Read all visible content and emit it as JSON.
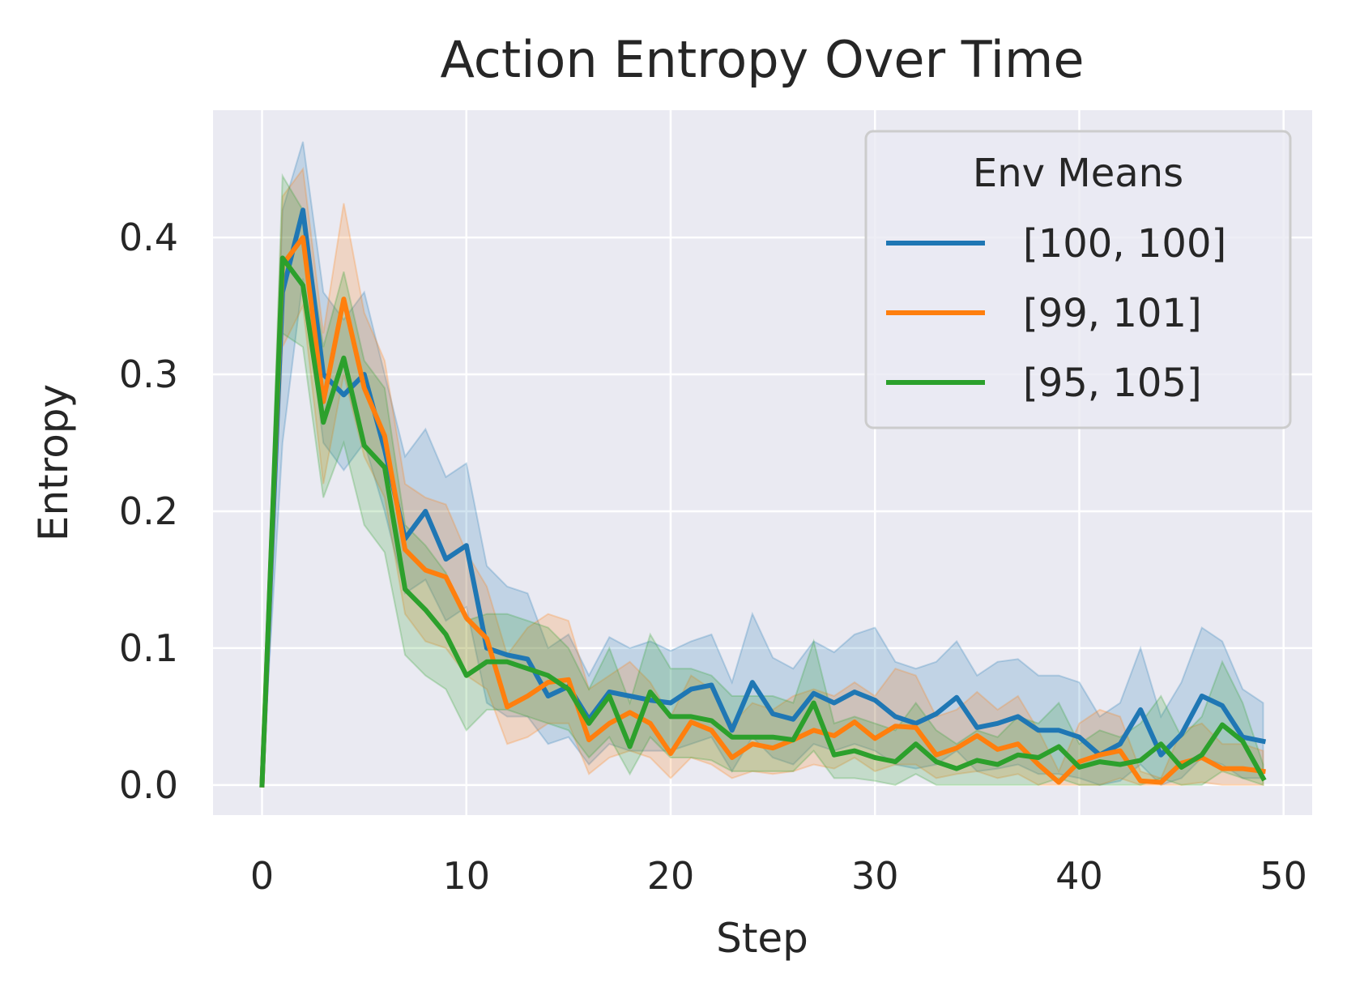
{
  "chart_data": {
    "type": "line",
    "title": "Action Entropy Over Time",
    "xlabel": "Step",
    "ylabel": "Entropy",
    "xlim": [
      -2.4,
      51.4
    ],
    "ylim": [
      -0.022,
      0.493
    ],
    "xticks": [
      0,
      10,
      20,
      30,
      40,
      50
    ],
    "yticks": [
      0.0,
      0.1,
      0.2,
      0.3,
      0.4
    ],
    "xtick_labels": [
      "0",
      "10",
      "20",
      "30",
      "40",
      "50"
    ],
    "ytick_labels": [
      "0.0",
      "0.1",
      "0.2",
      "0.3",
      "0.4"
    ],
    "grid": true,
    "legend": {
      "title": "Env Means",
      "placement": "upper right"
    },
    "colors": {
      "background": "#eaeaf2",
      "grid": "#ffffff",
      "text": "#262626"
    },
    "x": [
      0,
      1,
      2,
      3,
      4,
      5,
      6,
      7,
      8,
      9,
      10,
      11,
      12,
      13,
      14,
      15,
      16,
      17,
      18,
      19,
      20,
      21,
      22,
      23,
      24,
      25,
      26,
      27,
      28,
      29,
      30,
      31,
      32,
      33,
      34,
      35,
      36,
      37,
      38,
      39,
      40,
      41,
      42,
      43,
      44,
      45,
      46,
      47,
      48,
      49
    ],
    "series": [
      {
        "name": "[100, 100]",
        "color": "#1f77b4",
        "values": [
          0.0,
          0.36,
          0.42,
          0.3,
          0.285,
          0.3,
          0.245,
          0.18,
          0.2,
          0.165,
          0.175,
          0.1,
          0.095,
          0.092,
          0.065,
          0.072,
          0.048,
          0.068,
          0.065,
          0.062,
          0.06,
          0.07,
          0.073,
          0.04,
          0.075,
          0.052,
          0.048,
          0.067,
          0.06,
          0.068,
          0.062,
          0.05,
          0.045,
          0.052,
          0.064,
          0.042,
          0.045,
          0.05,
          0.04,
          0.04,
          0.035,
          0.022,
          0.03,
          0.055,
          0.022,
          0.037,
          0.065,
          0.058,
          0.035,
          0.032
        ],
        "lower": [
          0.0,
          0.25,
          0.37,
          0.25,
          0.23,
          0.25,
          0.2,
          0.14,
          0.15,
          0.12,
          0.13,
          0.06,
          0.05,
          0.05,
          0.03,
          0.035,
          0.015,
          0.03,
          0.025,
          0.025,
          0.025,
          0.03,
          0.035,
          0.01,
          0.035,
          0.02,
          0.015,
          0.03,
          0.025,
          0.03,
          0.025,
          0.015,
          0.012,
          0.015,
          0.025,
          0.01,
          0.012,
          0.015,
          0.008,
          0.008,
          0.005,
          0.0,
          0.003,
          0.015,
          0.0,
          0.005,
          0.02,
          0.015,
          0.005,
          0.005
        ],
        "upper": [
          0.0,
          0.42,
          0.47,
          0.36,
          0.34,
          0.36,
          0.3,
          0.24,
          0.26,
          0.225,
          0.235,
          0.16,
          0.145,
          0.14,
          0.1,
          0.11,
          0.08,
          0.108,
          0.1,
          0.105,
          0.098,
          0.105,
          0.11,
          0.075,
          0.125,
          0.093,
          0.085,
          0.105,
          0.097,
          0.11,
          0.115,
          0.09,
          0.085,
          0.09,
          0.105,
          0.08,
          0.09,
          0.092,
          0.08,
          0.08,
          0.075,
          0.05,
          0.06,
          0.1,
          0.05,
          0.075,
          0.115,
          0.105,
          0.07,
          0.06
        ]
      },
      {
        "name": "[99, 101]",
        "color": "#ff7f0e",
        "values": [
          0.0,
          0.38,
          0.4,
          0.28,
          0.355,
          0.29,
          0.255,
          0.172,
          0.157,
          0.152,
          0.122,
          0.107,
          0.057,
          0.065,
          0.075,
          0.077,
          0.033,
          0.045,
          0.053,
          0.045,
          0.023,
          0.046,
          0.04,
          0.02,
          0.03,
          0.027,
          0.033,
          0.04,
          0.036,
          0.046,
          0.034,
          0.043,
          0.042,
          0.022,
          0.027,
          0.036,
          0.026,
          0.03,
          0.015,
          0.002,
          0.017,
          0.022,
          0.025,
          0.003,
          0.002,
          0.016,
          0.02,
          0.012,
          0.012,
          0.01
        ],
        "lower": [
          0.0,
          0.32,
          0.35,
          0.22,
          0.3,
          0.24,
          0.21,
          0.125,
          0.105,
          0.1,
          0.08,
          0.07,
          0.03,
          0.035,
          0.045,
          0.045,
          0.008,
          0.02,
          0.025,
          0.02,
          0.005,
          0.02,
          0.015,
          0.005,
          0.01,
          0.008,
          0.01,
          0.015,
          0.012,
          0.02,
          0.01,
          0.015,
          0.015,
          0.005,
          0.008,
          0.01,
          0.005,
          0.008,
          0.0,
          0.0,
          0.0,
          0.0,
          0.005,
          0.0,
          0.0,
          0.0,
          0.002,
          0.0,
          0.0,
          0.0
        ],
        "upper": [
          0.0,
          0.43,
          0.45,
          0.33,
          0.425,
          0.345,
          0.31,
          0.22,
          0.21,
          0.205,
          0.17,
          0.145,
          0.095,
          0.115,
          0.125,
          0.12,
          0.07,
          0.08,
          0.09,
          0.075,
          0.05,
          0.08,
          0.07,
          0.045,
          0.06,
          0.055,
          0.065,
          0.07,
          0.065,
          0.075,
          0.065,
          0.085,
          0.08,
          0.05,
          0.055,
          0.068,
          0.055,
          0.065,
          0.04,
          0.01,
          0.045,
          0.055,
          0.05,
          0.01,
          0.005,
          0.04,
          0.045,
          0.03,
          0.03,
          0.025
        ]
      },
      {
        "name": "[95, 105]",
        "color": "#2ca02c",
        "values": [
          0.0,
          0.385,
          0.365,
          0.265,
          0.312,
          0.248,
          0.232,
          0.143,
          0.128,
          0.11,
          0.08,
          0.09,
          0.09,
          0.085,
          0.08,
          0.07,
          0.045,
          0.065,
          0.028,
          0.068,
          0.05,
          0.05,
          0.047,
          0.035,
          0.035,
          0.035,
          0.033,
          0.06,
          0.022,
          0.025,
          0.02,
          0.017,
          0.03,
          0.017,
          0.012,
          0.018,
          0.015,
          0.022,
          0.02,
          0.028,
          0.013,
          0.017,
          0.015,
          0.018,
          0.03,
          0.013,
          0.022,
          0.044,
          0.032,
          0.005
        ],
        "lower": [
          0.0,
          0.33,
          0.32,
          0.21,
          0.25,
          0.19,
          0.17,
          0.095,
          0.08,
          0.07,
          0.04,
          0.055,
          0.055,
          0.05,
          0.045,
          0.04,
          0.02,
          0.035,
          0.008,
          0.035,
          0.02,
          0.02,
          0.018,
          0.01,
          0.01,
          0.01,
          0.01,
          0.025,
          0.005,
          0.005,
          0.003,
          0.0,
          0.008,
          0.0,
          0.0,
          0.0,
          0.0,
          0.0,
          0.0,
          0.005,
          0.0,
          0.0,
          0.0,
          0.0,
          0.005,
          0.0,
          0.0,
          0.01,
          0.005,
          0.0
        ],
        "upper": [
          0.0,
          0.445,
          0.42,
          0.32,
          0.375,
          0.31,
          0.29,
          0.19,
          0.175,
          0.155,
          0.12,
          0.125,
          0.125,
          0.12,
          0.115,
          0.1,
          0.07,
          0.1,
          0.06,
          0.11,
          0.085,
          0.085,
          0.08,
          0.065,
          0.065,
          0.065,
          0.06,
          0.105,
          0.045,
          0.05,
          0.045,
          0.04,
          0.06,
          0.04,
          0.03,
          0.04,
          0.035,
          0.05,
          0.045,
          0.06,
          0.03,
          0.04,
          0.035,
          0.045,
          0.065,
          0.035,
          0.05,
          0.09,
          0.06,
          0.015
        ]
      }
    ]
  }
}
